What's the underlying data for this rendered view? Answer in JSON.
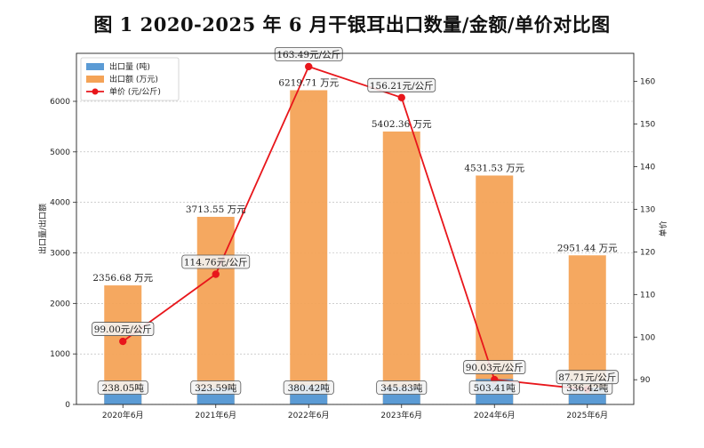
{
  "chart_data": {
    "type": "bar",
    "title": "图 1 2020-2025 年 6 月干银耳出口数量/金额/单价对比图",
    "categories": [
      "2020年6月",
      "2021年6月",
      "2022年6月",
      "2023年6月",
      "2024年6月",
      "2025年6月"
    ],
    "series": [
      {
        "name": "出口量 (吨)",
        "type": "bar",
        "axis": "left",
        "color": "#5b9bd5",
        "values": [
          238.05,
          323.59,
          380.42,
          345.83,
          503.41,
          336.42
        ],
        "labels": [
          "238.05吨",
          "323.59吨",
          "380.42吨",
          "345.83吨",
          "503.41吨",
          "336.42吨"
        ]
      },
      {
        "name": "出口额 (万元)",
        "type": "bar",
        "axis": "left",
        "color": "#f4a357",
        "values": [
          2356.68,
          3713.55,
          6219.71,
          5402.36,
          4531.53,
          2951.44
        ],
        "labels": [
          "2356.68 万元",
          "3713.55 万元",
          "6219.71 万元",
          "5402.36 万元",
          "4531.53 万元",
          "2951.44 万元"
        ]
      },
      {
        "name": "单价 (元/公斤)",
        "type": "line",
        "axis": "right",
        "color": "#e8161b",
        "values": [
          99.0,
          114.76,
          163.49,
          156.21,
          90.03,
          87.71
        ],
        "labels": [
          "99.00元/公斤",
          "114.76元/公斤",
          "163.49元/公斤",
          "156.21元/公斤",
          "90.03元/公斤",
          "87.71元/公斤"
        ]
      }
    ],
    "ylabel": "出口量/出口额",
    "y2label": "单价",
    "ylim": [
      0,
      6950
    ],
    "yticks": [
      0,
      1000,
      2000,
      3000,
      4000,
      5000,
      6000
    ],
    "y2lim": [
      84.2,
      166.6
    ],
    "y2ticks": [
      90,
      100,
      110,
      120,
      130,
      140,
      150,
      160
    ],
    "grid": true,
    "legend": "top-left"
  }
}
